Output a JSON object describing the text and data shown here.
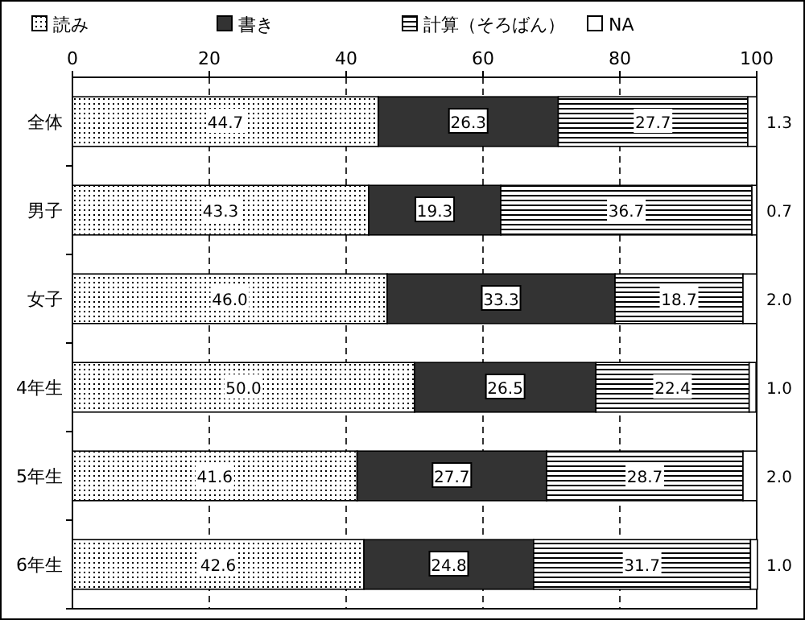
{
  "chart_data": {
    "type": "bar",
    "orientation": "horizontal",
    "stacked": true,
    "categories": [
      "全体",
      "男子",
      "女子",
      "4年生",
      "5年生",
      "6年生"
    ],
    "series": [
      {
        "name": "読み",
        "color": "#000000",
        "values": [
          44.7,
          43.3,
          46.0,
          50.0,
          41.6,
          42.6
        ],
        "value_labels": [
          "44.7",
          "43.3",
          "46.0",
          "50.0",
          "41.6",
          "42.6"
        ]
      },
      {
        "name": "書き",
        "color": "#333333",
        "values": [
          26.3,
          19.3,
          33.3,
          26.5,
          27.7,
          24.8
        ],
        "value_labels": [
          "26.3",
          "19.3",
          "33.3",
          "26.5",
          "27.7",
          "24.8"
        ]
      },
      {
        "name": "計算（そろばん）",
        "color": "#000000",
        "values": [
          27.7,
          36.7,
          18.7,
          22.4,
          28.7,
          31.7
        ],
        "value_labels": [
          "27.7",
          "36.7",
          "18.7",
          "22.4",
          "28.7",
          "31.7"
        ]
      },
      {
        "name": "NA",
        "color": "#ffffff",
        "values": [
          1.3,
          0.7,
          2.0,
          1.0,
          2.0,
          1.0
        ],
        "value_labels": [
          "1.3",
          "0.7",
          "2.0",
          "1.0",
          "2.0",
          "1.0"
        ]
      }
    ],
    "xlim": [
      0,
      100
    ],
    "xticks": [
      0,
      20,
      40,
      60,
      80,
      100
    ],
    "grid": "x",
    "legend": "top"
  }
}
